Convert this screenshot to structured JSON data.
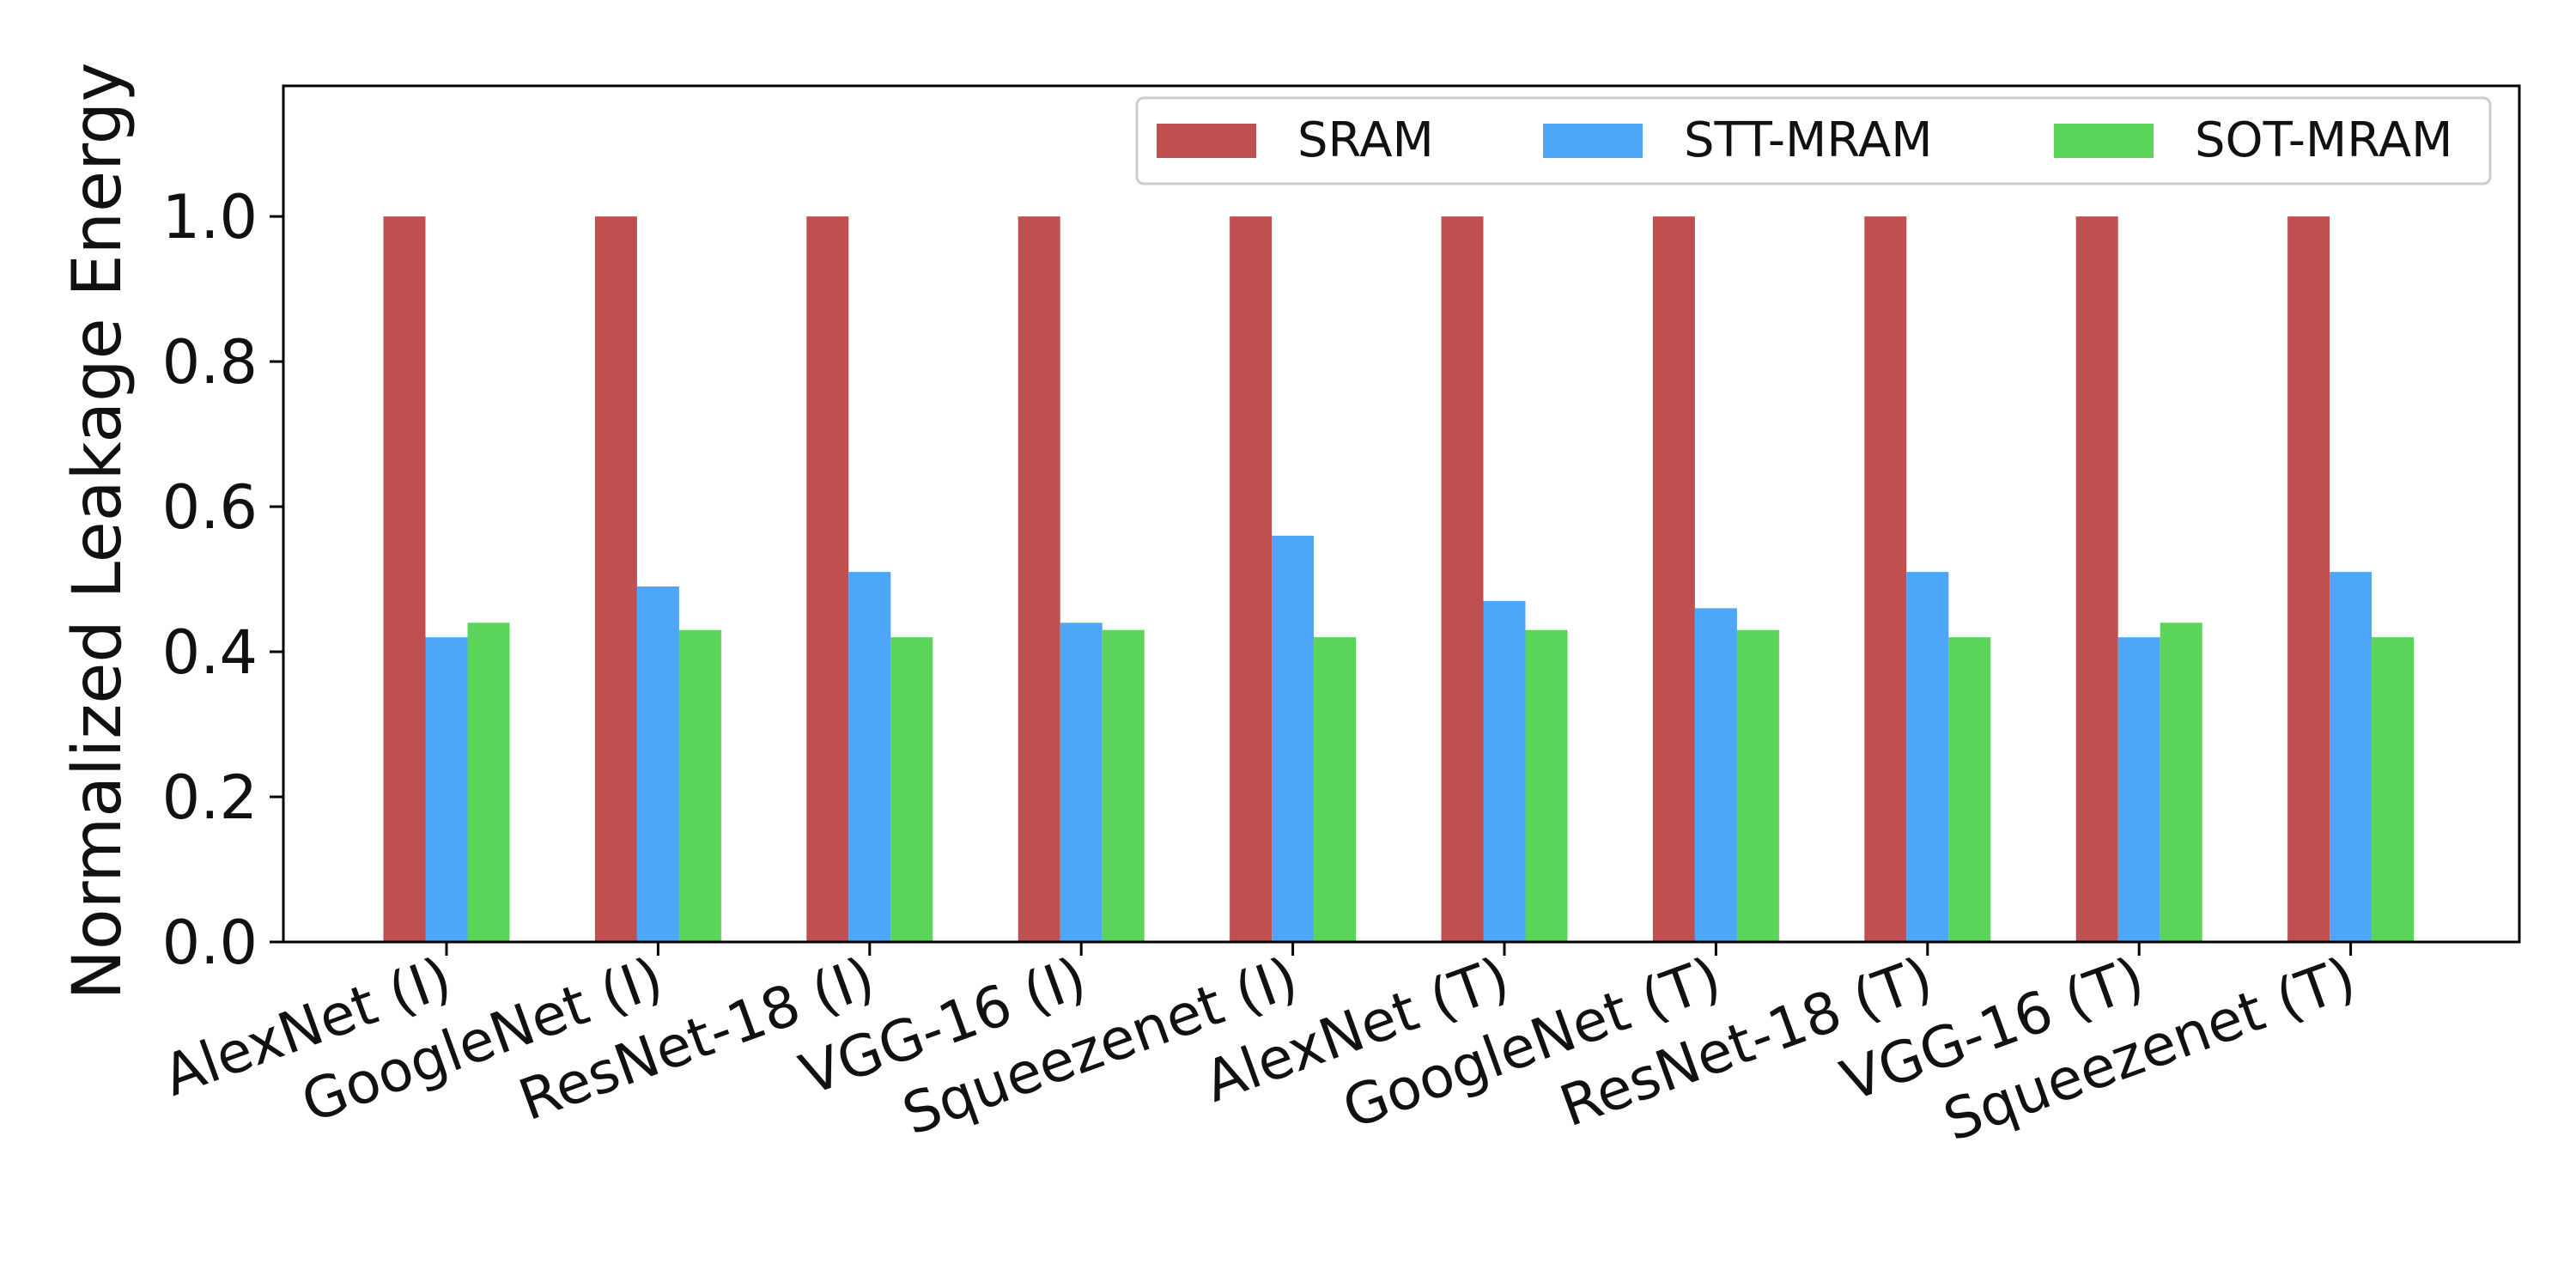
{
  "chart_data": {
    "type": "bar",
    "title": "",
    "xlabel": "",
    "ylabel": "Normalized Leakage Energy",
    "ylim": [
      0,
      1.18
    ],
    "yticks": [
      "0.0",
      "0.2",
      "0.4",
      "0.6",
      "0.8",
      "1.0"
    ],
    "ytick_values": [
      0.0,
      0.2,
      0.4,
      0.6,
      0.8,
      1.0
    ],
    "grid": false,
    "legend_position": "top-right",
    "categories": [
      "AlexNet (I)",
      "GoogleNet (I)",
      "ResNet-18 (I)",
      "VGG-16 (I)",
      "Squeezenet (I)",
      "AlexNet (T)",
      "GoogleNet (T)",
      "ResNet-18 (T)",
      "VGG-16 (T)",
      "Squeezenet (T)"
    ],
    "series": [
      {
        "name": "SRAM",
        "color": "#c05050",
        "values": [
          1.0,
          1.0,
          1.0,
          1.0,
          1.0,
          1.0,
          1.0,
          1.0,
          1.0,
          1.0
        ]
      },
      {
        "name": "STT-MRAM",
        "color": "#4ea6f8",
        "values": [
          0.42,
          0.49,
          0.51,
          0.44,
          0.56,
          0.47,
          0.46,
          0.51,
          0.42,
          0.51
        ]
      },
      {
        "name": "SOT-MRAM",
        "color": "#5ad55a",
        "values": [
          0.44,
          0.43,
          0.42,
          0.43,
          0.42,
          0.43,
          0.43,
          0.42,
          0.44,
          0.42
        ]
      }
    ]
  }
}
